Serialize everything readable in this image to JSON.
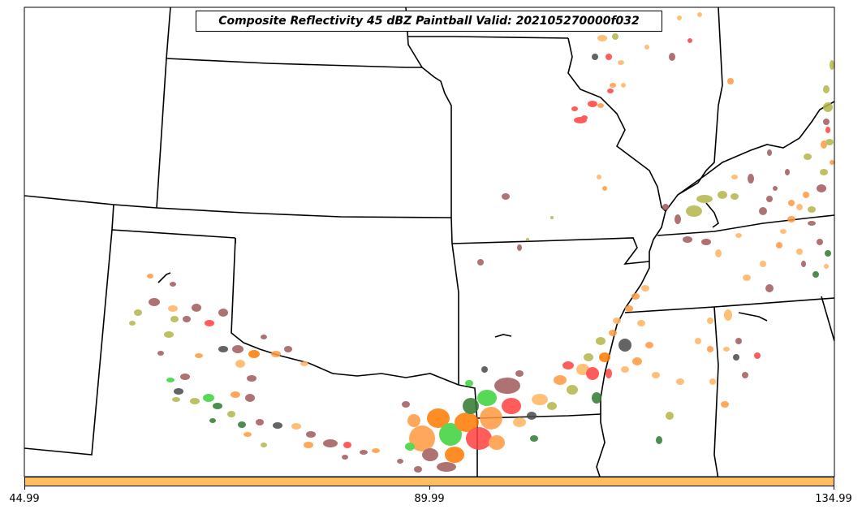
{
  "title": "Composite Reflectivity 45 dBZ Paintball Valid: 202105270000f032",
  "colorbar": {
    "color": "#ffbf5f",
    "ticks": [
      "44.99",
      "89.99",
      "134.99"
    ]
  },
  "member_colors": [
    "#a05a5a",
    "#ff9a40",
    "#ff4040",
    "#ffb560",
    "#b5b54a",
    "#4a4a4a",
    "#3ad23a",
    "#2f7a2f",
    "#ff7a00"
  ],
  "map_features": [
    "state-borders",
    "mississippi-river",
    "great-lakes-outline"
  ]
}
